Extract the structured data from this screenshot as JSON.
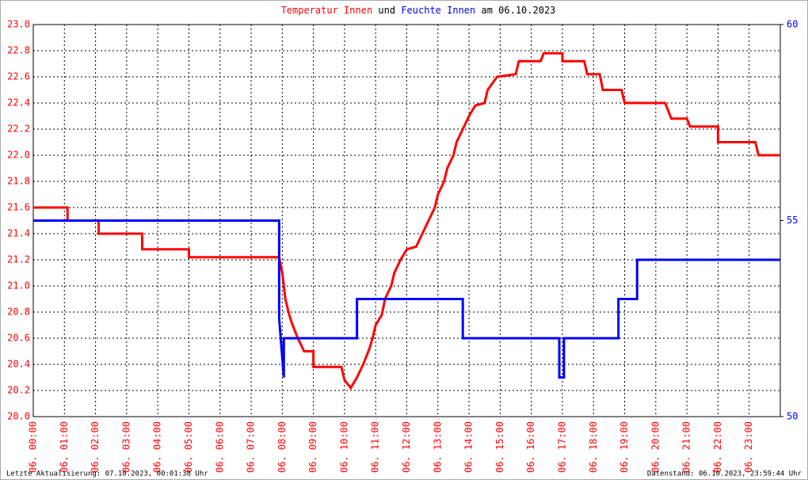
{
  "chart_data": {
    "type": "line",
    "title_parts": [
      "und",
      "am 06.10.2023"
    ],
    "footer_left": "Letzte Aktualisierung: 07.10.2023, 00:01:38 Uhr",
    "footer_right": "Datenstand: 06.10.2023, 23:59:44 Uhr",
    "grid": true,
    "xlim": [
      0,
      24
    ],
    "xticks": [
      {
        "value": 0,
        "label": "06. 00:00"
      },
      {
        "value": 1,
        "label": "06. 01:00"
      },
      {
        "value": 2,
        "label": "06. 02:00"
      },
      {
        "value": 3,
        "label": "06. 03:00"
      },
      {
        "value": 4,
        "label": "06. 04:00"
      },
      {
        "value": 5,
        "label": "06. 05:00"
      },
      {
        "value": 6,
        "label": "06. 06:00"
      },
      {
        "value": 7,
        "label": "06. 07:00"
      },
      {
        "value": 8,
        "label": "06. 08:00"
      },
      {
        "value": 9,
        "label": "06. 09:00"
      },
      {
        "value": 10,
        "label": "06. 10:00"
      },
      {
        "value": 11,
        "label": "06. 11:00"
      },
      {
        "value": 12,
        "label": "06. 12:00"
      },
      {
        "value": 13,
        "label": "06. 13:00"
      },
      {
        "value": 14,
        "label": "06. 14:00"
      },
      {
        "value": 15,
        "label": "06. 15:00"
      },
      {
        "value": 16,
        "label": "06. 16:00"
      },
      {
        "value": 17,
        "label": "06. 17:00"
      },
      {
        "value": 18,
        "label": "06. 18:00"
      },
      {
        "value": 19,
        "label": "06. 19:00"
      },
      {
        "value": 20,
        "label": "06. 20:00"
      },
      {
        "value": 21,
        "label": "06. 21:00"
      },
      {
        "value": 22,
        "label": "06. 22:00"
      },
      {
        "value": 23,
        "label": "06. 23:00"
      }
    ],
    "ylim": [
      20,
      23
    ],
    "yticks": [
      {
        "value": 20,
        "label": "20.0"
      },
      {
        "value": 20.2,
        "label": "20.2"
      },
      {
        "value": 20.4,
        "label": "20.4"
      },
      {
        "value": 20.6,
        "label": "20.6"
      },
      {
        "value": 20.8,
        "label": "20.8"
      },
      {
        "value": 21,
        "label": "21.0"
      },
      {
        "value": 21.2,
        "label": "21.2"
      },
      {
        "value": 21.4,
        "label": "21.4"
      },
      {
        "value": 21.6,
        "label": "21.6"
      },
      {
        "value": 21.8,
        "label": "21.8"
      },
      {
        "value": 22,
        "label": "22.0"
      },
      {
        "value": 22.2,
        "label": "22.2"
      },
      {
        "value": 22.4,
        "label": "22.4"
      },
      {
        "value": 22.6,
        "label": "22.6"
      },
      {
        "value": 22.8,
        "label": "22.8"
      },
      {
        "value": 23,
        "label": "23.0"
      }
    ],
    "y2lim": [
      50,
      60
    ],
    "y2ticks": [
      50,
      55,
      60
    ],
    "series": [
      {
        "name": "Temperatur Innen",
        "color": "#ff0000",
        "x": [
          0,
          1.1,
          1.1,
          2.1,
          2.1,
          3.5,
          3.5,
          5.0,
          5.0,
          7.9,
          8.0,
          8.1,
          8.2,
          8.3,
          8.5,
          8.7,
          9.0,
          9.0,
          9.9,
          10.0,
          10.2,
          10.4,
          10.6,
          10.8,
          10.9,
          11.0,
          11.2,
          11.3,
          11.5,
          11.6,
          11.8,
          12.0,
          12.3,
          12.5,
          12.7,
          12.9,
          13.0,
          13.2,
          13.3,
          13.5,
          13.6,
          13.8,
          14.0,
          14.2,
          14.5,
          14.6,
          14.9,
          15.5,
          15.6,
          16.3,
          16.4,
          17.0,
          17.0,
          17.7,
          17.8,
          18.2,
          18.3,
          18.9,
          19.0,
          20.3,
          20.5,
          21.0,
          21.1,
          22.0,
          22.0,
          23.2,
          23.3,
          24
        ],
        "values": [
          21.6,
          21.6,
          21.5,
          21.5,
          21.4,
          21.4,
          21.28,
          21.28,
          21.22,
          21.22,
          21.1,
          20.9,
          20.8,
          20.72,
          20.6,
          20.5,
          20.5,
          20.38,
          20.38,
          20.28,
          20.22,
          20.3,
          20.4,
          20.52,
          20.6,
          20.7,
          20.78,
          20.9,
          21.0,
          21.1,
          21.2,
          21.28,
          21.3,
          21.4,
          21.5,
          21.6,
          21.7,
          21.8,
          21.9,
          22.0,
          22.1,
          22.2,
          22.3,
          22.38,
          22.4,
          22.5,
          22.6,
          22.62,
          22.72,
          22.72,
          22.78,
          22.78,
          22.72,
          22.72,
          22.62,
          22.62,
          22.5,
          22.5,
          22.4,
          22.4,
          22.28,
          22.28,
          22.22,
          22.22,
          22.1,
          22.1,
          22.0,
          22.0
        ]
      },
      {
        "name": "Feuchte Innen",
        "color": "#0000ff",
        "axis": "y2",
        "x": [
          0,
          7.9,
          7.9,
          8.05,
          8.05,
          10.4,
          10.4,
          13.8,
          13.8,
          16.9,
          16.9,
          17.05,
          17.05,
          18.8,
          18.8,
          19.4,
          19.4,
          24
        ],
        "values": [
          55,
          55,
          52.5,
          51,
          52,
          52,
          53,
          53,
          52,
          52,
          51,
          51,
          52,
          52,
          53,
          53,
          54,
          54
        ]
      }
    ]
  }
}
